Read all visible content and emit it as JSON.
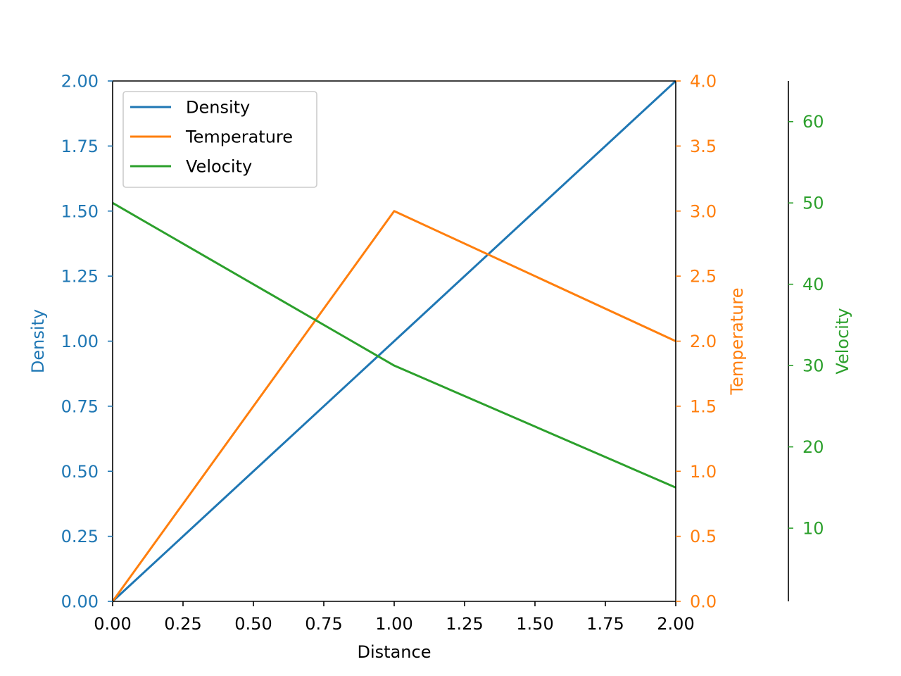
{
  "chart_data": {
    "type": "line",
    "x": [
      0,
      1,
      2
    ],
    "xlabel": "Distance",
    "xlim": [
      0,
      2
    ],
    "x_ticks": [
      "0.00",
      "0.25",
      "0.50",
      "0.75",
      "1.00",
      "1.25",
      "1.50",
      "1.75",
      "2.00"
    ],
    "grid": false,
    "legend": "top-left",
    "axes": [
      {
        "id": "density",
        "label": "Density",
        "side": "left",
        "color": "#1f77b4",
        "ylim": [
          0,
          2
        ],
        "ticks": [
          "0.00",
          "0.25",
          "0.50",
          "0.75",
          "1.00",
          "1.25",
          "1.50",
          "1.75",
          "2.00"
        ]
      },
      {
        "id": "temperature",
        "label": "Temperature",
        "side": "right",
        "color": "#ff7f0e",
        "ylim": [
          0,
          4
        ],
        "ticks": [
          "0.0",
          "0.5",
          "1.0",
          "1.5",
          "2.0",
          "2.5",
          "3.0",
          "3.5",
          "4.0"
        ]
      },
      {
        "id": "velocity",
        "label": "Velocity",
        "side": "right-offset",
        "color": "#2ca02c",
        "ylim": [
          1,
          65
        ],
        "ticks": [
          "10",
          "20",
          "30",
          "40",
          "50",
          "60"
        ]
      }
    ],
    "series": [
      {
        "name": "Density",
        "axis": "density",
        "color": "#1f77b4",
        "values": [
          0,
          1,
          2
        ]
      },
      {
        "name": "Temperature",
        "axis": "temperature",
        "color": "#ff7f0e",
        "values": [
          0,
          3,
          2
        ]
      },
      {
        "name": "Velocity",
        "axis": "velocity",
        "color": "#2ca02c",
        "values": [
          50,
          30,
          15
        ]
      }
    ]
  }
}
